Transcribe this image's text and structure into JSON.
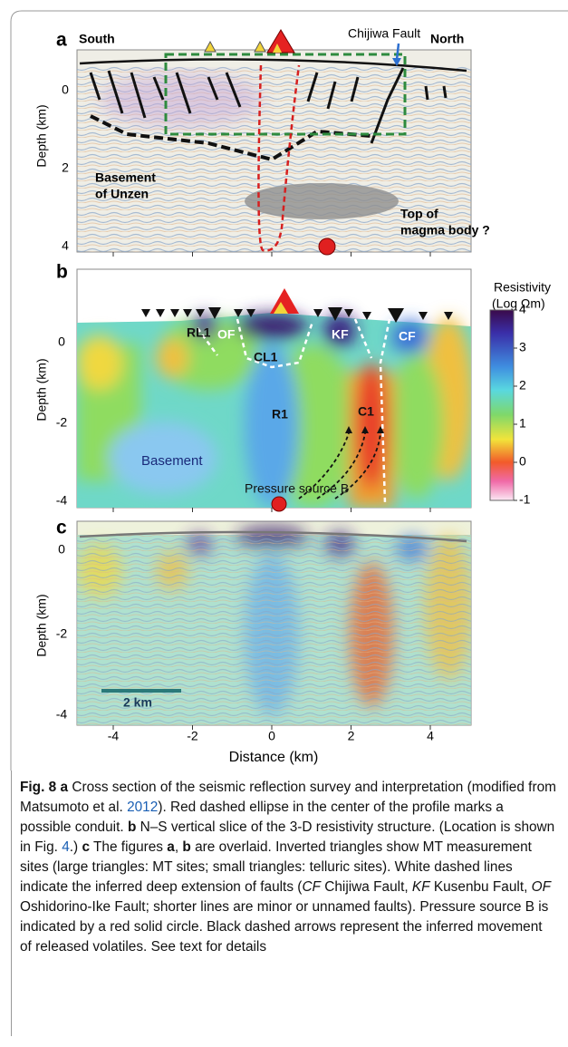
{
  "figure": {
    "panels": [
      {
        "label": "a",
        "y_axis_label": "Depth (km)",
        "y_ticks": [
          "0",
          "2",
          "4"
        ],
        "annotations": [
          "South",
          "Chijiwa Fault",
          "North",
          "Basement",
          "of Unzen",
          "Top of",
          "magma body ?"
        ]
      },
      {
        "label": "b",
        "y_axis_label": "Depth (km)",
        "y_ticks": [
          "0",
          "-2",
          "-4"
        ],
        "annotations": [
          "RL1",
          "OF",
          "CL1",
          "KF",
          "CF",
          "R1",
          "C1",
          "Basement",
          "Pressure source B"
        ],
        "colorbar": {
          "title": [
            "Resistivity",
            "(Log Ωm)"
          ],
          "ticks": [
            "4",
            "3",
            "2",
            "1",
            "0",
            "-1"
          ]
        }
      },
      {
        "label": "c",
        "y_axis_label": "Depth (km)",
        "y_ticks": [
          "0",
          "-2",
          "-4"
        ],
        "scale_bar": "2 km"
      }
    ],
    "x_ticks": [
      "-4",
      "-2",
      "0",
      "2",
      "4"
    ],
    "x_axis_label": "Distance (km)"
  },
  "caption": [
    {
      "text": "Fig. 8",
      "style": "bold"
    },
    {
      "text": "a",
      "style": "bold"
    },
    {
      "text": "Cross section of the seismic reflection survey and interpretation (modified from Matsumoto et al.",
      "style": "plain"
    },
    {
      "text": "2012",
      "style": "link"
    },
    {
      "text": "). Red dashed ellipse in the center of the profile marks a possible conduit.",
      "style": "plain"
    },
    {
      "text": "b",
      "style": "bold"
    },
    {
      "text": "N–S vertical slice of the 3-D resistivity structure. (Location is shown in Fig.",
      "style": "plain"
    },
    {
      "text": "4",
      "style": "link"
    },
    {
      "text": ".)",
      "style": "plain"
    },
    {
      "text": "c",
      "style": "bold"
    },
    {
      "text": "The figures",
      "style": "plain"
    },
    {
      "text": "a",
      "style": "bold"
    },
    {
      "text": ",",
      "style": "plain"
    },
    {
      "text": "b",
      "style": "bold"
    },
    {
      "text": "are overlaid. Inverted triangles show MT measurement sites (large triangles: MT sites; small triangles: telluric sites). White dashed lines indicate the inferred deep extension of faults (",
      "style": "plain"
    },
    {
      "text": "CF",
      "style": "italic"
    },
    {
      "text": "Chijiwa Fault,",
      "style": "plain"
    },
    {
      "text": "KF",
      "style": "italic"
    },
    {
      "text": "Kusenbu Fault,",
      "style": "plain"
    },
    {
      "text": "OF",
      "style": "italic"
    },
    {
      "text": "Oshidorino-Ike Fault; shorter lines are minor or unnamed faults). Pressure source B is indicated by a red solid circle. Black dashed arrows represent the inferred movement of released volatiles. See text for details",
      "style": "plain"
    }
  ]
}
